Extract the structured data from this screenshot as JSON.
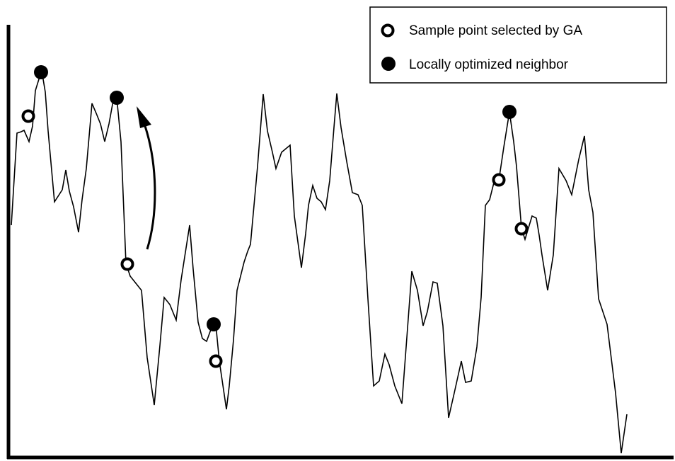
{
  "chart_data": {
    "type": "line",
    "axis_style": "unlabeled-axes",
    "curve_color": "#000000",
    "legend": {
      "placement": "top-right",
      "entries": [
        {
          "marker": "hollow-circle",
          "label": "Sample point selected by GA"
        },
        {
          "marker": "filled-circle",
          "label": "Locally optimized neighbor"
        }
      ]
    },
    "arrow": {
      "meaning": "hill-climb from sample point to locally optimized neighbor"
    }
  }
}
